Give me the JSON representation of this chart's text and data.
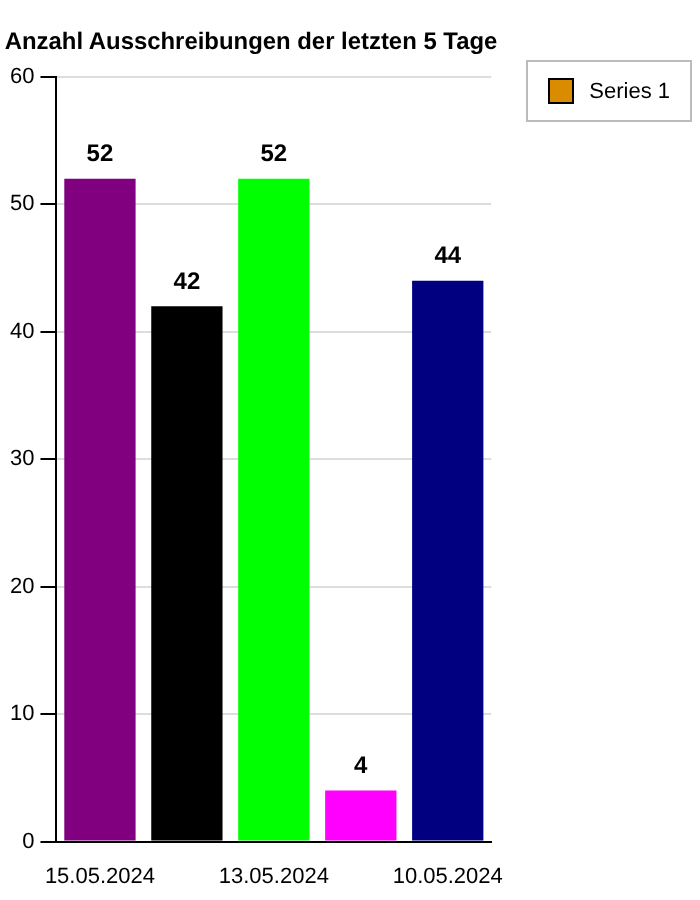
{
  "chart_data": {
    "type": "bar",
    "title": "Anzahl Ausschreibungen der letzten 5 Tage",
    "categories": [
      "15.05.2024",
      null,
      "13.05.2024",
      null,
      "10.05.2024"
    ],
    "series": [
      {
        "name": "Series 1",
        "color": "#d98c00",
        "colors": [
          "#800080",
          "#000000",
          "#00ff00",
          "#ff00ff",
          "#000080"
        ],
        "values": [
          52,
          42,
          52,
          4,
          44
        ]
      }
    ],
    "ylim": [
      0,
      60
    ],
    "yticks": [
      0,
      10,
      20,
      30,
      40,
      50,
      60
    ],
    "grid": "y",
    "legend": "top right",
    "data_labels": true
  }
}
